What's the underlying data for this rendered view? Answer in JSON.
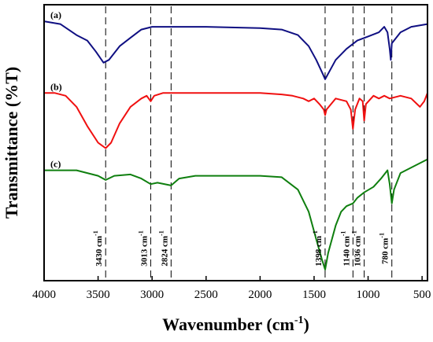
{
  "chart_data": {
    "type": "line",
    "xlabel": "Wavenumber (cm",
    "xlabel_sup": "-1",
    "xlabel_tail": ")",
    "ylabel": "Transmittance (%T)",
    "xlim": [
      4000,
      450
    ],
    "reversed_x": true,
    "xticks": [
      "4000",
      "3500",
      "3000",
      "2500",
      "2000",
      "1500",
      "1000",
      "500"
    ],
    "xtick_values": [
      4000,
      3500,
      3000,
      2500,
      2000,
      1500,
      1000,
      500
    ],
    "ylim": [
      0,
      100
    ],
    "y_ticks_shown": false,
    "series": [
      {
        "name": "(a)",
        "color": "#0f0f82",
        "points": [
          [
            4000,
            94
          ],
          [
            3850,
            93
          ],
          [
            3700,
            89
          ],
          [
            3600,
            87
          ],
          [
            3520,
            83
          ],
          [
            3450,
            79
          ],
          [
            3400,
            80
          ],
          [
            3300,
            85
          ],
          [
            3200,
            88
          ],
          [
            3100,
            91
          ],
          [
            3000,
            92
          ],
          [
            2800,
            92
          ],
          [
            2500,
            92
          ],
          [
            2000,
            91.5
          ],
          [
            1800,
            91
          ],
          [
            1650,
            89
          ],
          [
            1550,
            85
          ],
          [
            1480,
            80
          ],
          [
            1420,
            75
          ],
          [
            1398,
            73
          ],
          [
            1370,
            75
          ],
          [
            1300,
            80
          ],
          [
            1200,
            84
          ],
          [
            1100,
            87
          ],
          [
            1000,
            88.5
          ],
          [
            900,
            90
          ],
          [
            850,
            92
          ],
          [
            820,
            90
          ],
          [
            800,
            84
          ],
          [
            790,
            80
          ],
          [
            780,
            86
          ],
          [
            700,
            90
          ],
          [
            600,
            92
          ],
          [
            450,
            93
          ]
        ]
      },
      {
        "name": "(b)",
        "color": "#f01010",
        "points": [
          [
            4000,
            68
          ],
          [
            3900,
            68
          ],
          [
            3800,
            67
          ],
          [
            3700,
            63
          ],
          [
            3600,
            56
          ],
          [
            3500,
            50
          ],
          [
            3430,
            48
          ],
          [
            3380,
            50
          ],
          [
            3300,
            57
          ],
          [
            3200,
            63
          ],
          [
            3100,
            66
          ],
          [
            3050,
            67
          ],
          [
            3013,
            65
          ],
          [
            2980,
            67
          ],
          [
            2900,
            68
          ],
          [
            2500,
            68
          ],
          [
            2000,
            68
          ],
          [
            1800,
            67.5
          ],
          [
            1700,
            67
          ],
          [
            1600,
            66
          ],
          [
            1550,
            65
          ],
          [
            1500,
            66
          ],
          [
            1450,
            64
          ],
          [
            1410,
            62
          ],
          [
            1398,
            60
          ],
          [
            1385,
            62
          ],
          [
            1300,
            66
          ],
          [
            1200,
            65
          ],
          [
            1160,
            62
          ],
          [
            1140,
            55
          ],
          [
            1120,
            62
          ],
          [
            1080,
            66
          ],
          [
            1050,
            65
          ],
          [
            1036,
            58
          ],
          [
            1020,
            64
          ],
          [
            950,
            67
          ],
          [
            900,
            66
          ],
          [
            850,
            67
          ],
          [
            800,
            66
          ],
          [
            700,
            67
          ],
          [
            600,
            66
          ],
          [
            520,
            63
          ],
          [
            480,
            65
          ],
          [
            450,
            68
          ]
        ]
      },
      {
        "name": "(c)",
        "color": "#0f7f0f",
        "points": [
          [
            4000,
            40
          ],
          [
            3900,
            40
          ],
          [
            3700,
            40
          ],
          [
            3600,
            39
          ],
          [
            3500,
            38
          ],
          [
            3430,
            36.5
          ],
          [
            3350,
            38
          ],
          [
            3200,
            38.5
          ],
          [
            3100,
            37
          ],
          [
            3013,
            35
          ],
          [
            2950,
            35.5
          ],
          [
            2824,
            34.5
          ],
          [
            2750,
            37
          ],
          [
            2600,
            38
          ],
          [
            2400,
            38
          ],
          [
            2200,
            38
          ],
          [
            2000,
            38
          ],
          [
            1800,
            37.5
          ],
          [
            1650,
            33
          ],
          [
            1550,
            25
          ],
          [
            1480,
            15
          ],
          [
            1430,
            8
          ],
          [
            1398,
            4
          ],
          [
            1370,
            10
          ],
          [
            1300,
            20
          ],
          [
            1250,
            25
          ],
          [
            1200,
            27
          ],
          [
            1140,
            28
          ],
          [
            1100,
            30
          ],
          [
            1036,
            32
          ],
          [
            950,
            34
          ],
          [
            880,
            37
          ],
          [
            820,
            40
          ],
          [
            800,
            35
          ],
          [
            780,
            28
          ],
          [
            760,
            33
          ],
          [
            700,
            39
          ],
          [
            600,
            41
          ],
          [
            500,
            43
          ],
          [
            450,
            44
          ]
        ]
      }
    ],
    "annotations": [
      {
        "x": 3430,
        "label": "3430 cm",
        "sup": "-1"
      },
      {
        "x": 3013,
        "label": "3013 cm",
        "sup": "-1"
      },
      {
        "x": 2824,
        "label": "2824 cm",
        "sup": "-1"
      },
      {
        "x": 1398,
        "label": "1398 cm",
        "sup": "-1"
      },
      {
        "x": 1140,
        "label": "1140 cm",
        "sup": "-1"
      },
      {
        "x": 1036,
        "label": "1036 cm",
        "sup": "-1"
      },
      {
        "x": 780,
        "label": "780 cm",
        "sup": "-1"
      }
    ],
    "reference_lines": "dashed vertical",
    "grid": false,
    "legend": "none"
  }
}
